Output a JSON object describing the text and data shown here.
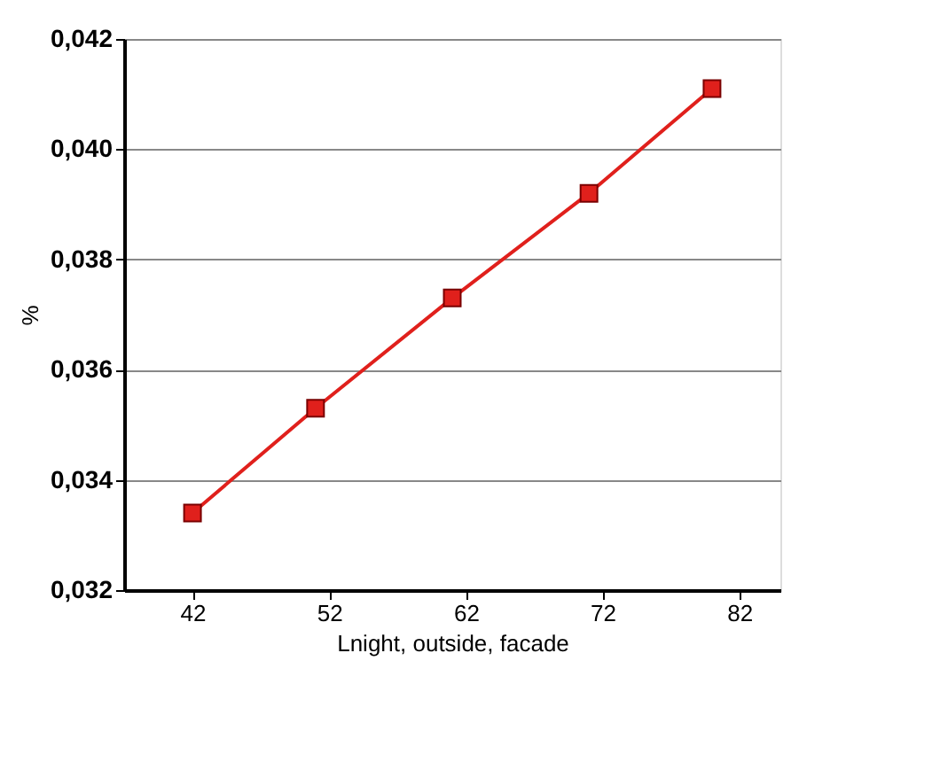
{
  "chart_data": {
    "type": "line",
    "xlabel": "Lnight, outside, facade",
    "ylabel": "%",
    "x": [
      42,
      51,
      61,
      71,
      80
    ],
    "series": [
      {
        "color": "#e0201c",
        "values": [
          0.0334,
          0.0353,
          0.0373,
          0.0392,
          0.0411
        ]
      }
    ],
    "xlim": [
      37,
      85
    ],
    "xticks": [
      42,
      52,
      62,
      72,
      82
    ],
    "ylim": [
      0.032,
      0.042
    ],
    "yticks": [
      {
        "value": 0.032,
        "label": "0,032"
      },
      {
        "value": 0.034,
        "label": "0,034"
      },
      {
        "value": 0.036,
        "label": "0,036"
      },
      {
        "value": 0.038,
        "label": "0,038"
      },
      {
        "value": 0.04,
        "label": "0,040"
      },
      {
        "value": 0.042,
        "label": "0,042"
      }
    ],
    "grid": "y",
    "marker": "square",
    "line_style": "solid"
  }
}
